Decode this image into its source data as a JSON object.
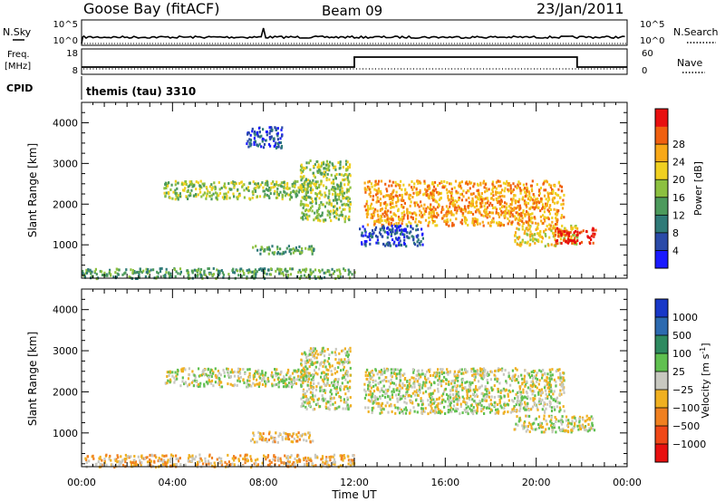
{
  "header": {
    "station": "Goose Bay (fitACF)",
    "beam": "Beam 09",
    "date": "23/Jan/2011"
  },
  "top_panels": {
    "nsky": {
      "label": "N.Sky",
      "right_label": "N.Search",
      "ticks_left": [
        "10^5",
        "10^0"
      ],
      "ticks_right": [
        "10^5",
        "10^0"
      ]
    },
    "freq": {
      "label_line1": "Freq.",
      "label_line2": "[MHz]",
      "right_label": "Nave",
      "ticks_left": [
        "18",
        "8"
      ],
      "ticks_right": [
        "60",
        "0"
      ],
      "step": {
        "start_hour": 12,
        "end_hour": 21.8,
        "low_value": 0,
        "high_value": 48
      }
    },
    "cpid": {
      "label": "CPID",
      "value": "themis (tau) 3310"
    }
  },
  "chart_data": [
    {
      "type": "heatmap",
      "name": "power",
      "xlabel": "Time UT",
      "ylabel": "Slant Range [km]",
      "xlim": [
        0,
        24
      ],
      "ylim": [
        180,
        4500
      ],
      "yticks": [
        "1000",
        "2000",
        "3000",
        "4000"
      ],
      "colorbar": {
        "label": "Power [dB]",
        "ticks": [
          "4",
          "8",
          "12",
          "16",
          "20",
          "24",
          "28"
        ],
        "colors": [
          "#1a1aff",
          "#2a4aa8",
          "#2f7a78",
          "#4c9a5c",
          "#8cc040",
          "#f0d020",
          "#f8a818",
          "#f06010",
          "#e81010"
        ]
      },
      "regions": [
        {
          "t0": 0.0,
          "t1": 12.0,
          "r0": 200,
          "r1": 450,
          "level": 3
        },
        {
          "t0": 3.6,
          "t1": 10.0,
          "r0": 2150,
          "r1": 2600,
          "level": 4
        },
        {
          "t0": 7.4,
          "t1": 10.2,
          "r0": 800,
          "r1": 1000,
          "level": 3
        },
        {
          "t0": 9.6,
          "t1": 11.8,
          "r0": 1600,
          "r1": 3100,
          "level": 4
        },
        {
          "t0": 7.2,
          "t1": 8.8,
          "r0": 3400,
          "r1": 3950,
          "level": 1
        },
        {
          "t0": 12.4,
          "t1": 21.2,
          "r0": 1500,
          "r1": 2600,
          "level": 6
        },
        {
          "t0": 12.2,
          "t1": 15.0,
          "r0": 1000,
          "r1": 1500,
          "level": 1
        },
        {
          "t0": 19.0,
          "t1": 21.8,
          "r0": 1000,
          "r1": 1500,
          "level": 5
        },
        {
          "t0": 20.8,
          "t1": 22.6,
          "r0": 1050,
          "r1": 1450,
          "level": 8
        }
      ]
    },
    {
      "type": "heatmap",
      "name": "velocity",
      "xlabel": "Time UT",
      "ylabel": "Slant Range [km]",
      "xlim": [
        0,
        24
      ],
      "ylim": [
        180,
        4500
      ],
      "xticks": [
        "00:00",
        "04:00",
        "08:00",
        "12:00",
        "16:00",
        "20:00",
        "00:00"
      ],
      "yticks": [
        "1000",
        "2000",
        "3000",
        "4000"
      ],
      "colorbar": {
        "label_main": "Velocity [m s",
        "label_sup": "-1",
        "label_end": "]",
        "ticks": [
          "1000",
          "500",
          "100",
          "25",
          "−25",
          "−100",
          "−500",
          "−1000"
        ],
        "colors": [
          "#1838c8",
          "#2c6ab0",
          "#2e8a60",
          "#60c050",
          "#c8c8c0",
          "#f0b020",
          "#f08020",
          "#f04818",
          "#e81010"
        ]
      },
      "regions": [
        {
          "t0": 0.0,
          "t1": 12.0,
          "r0": 200,
          "r1": 500,
          "level": 5
        },
        {
          "t0": 3.6,
          "t1": 10.0,
          "r0": 2150,
          "r1": 2600,
          "level": 4
        },
        {
          "t0": 7.4,
          "t1": 10.2,
          "r0": 800,
          "r1": 1050,
          "level": 5
        },
        {
          "t0": 9.6,
          "t1": 11.8,
          "r0": 1600,
          "r1": 3100,
          "level": 4
        },
        {
          "t0": 12.4,
          "t1": 21.2,
          "r0": 1500,
          "r1": 2600,
          "level": 4
        },
        {
          "t0": 19.0,
          "t1": 22.6,
          "r0": 1050,
          "r1": 1450,
          "level": 4
        }
      ]
    }
  ]
}
